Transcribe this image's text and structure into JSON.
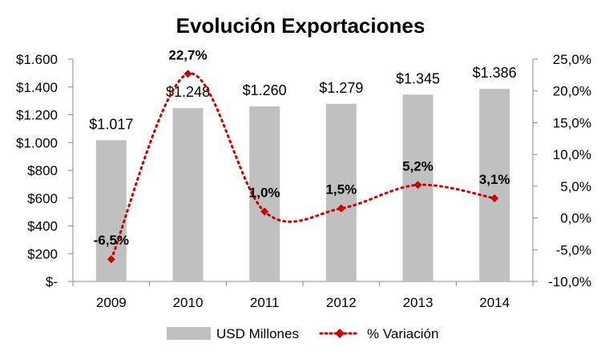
{
  "chart_data": {
    "type": "bar",
    "title": "Evolución Exportaciones",
    "categories": [
      "2009",
      "2010",
      "2011",
      "2012",
      "2013",
      "2014"
    ],
    "series": [
      {
        "name": "USD Millones",
        "type": "bar",
        "axis": "left",
        "color": "#c0c0c0",
        "values": [
          1017,
          1248,
          1260,
          1279,
          1345,
          1386
        ],
        "labels": [
          "$1.017",
          "$1.248",
          "$1.260",
          "$1.279",
          "$1.345",
          "$1.386"
        ]
      },
      {
        "name": "% Variación",
        "type": "line",
        "axis": "right",
        "color": "#cc0000",
        "style": "dotted-smooth",
        "marker": "diamond",
        "values": [
          -6.5,
          22.7,
          1.0,
          1.5,
          5.2,
          3.1
        ],
        "labels": [
          "-6,5%",
          "22,7%",
          "1,0%",
          "1,5%",
          "5,2%",
          "3,1%"
        ]
      }
    ],
    "y_left": {
      "ylim": [
        0,
        1600
      ],
      "ticks": [
        0,
        200,
        400,
        600,
        800,
        1000,
        1200,
        1400,
        1600
      ],
      "tick_labels": [
        "$-",
        "$200",
        "$400",
        "$600",
        "$800",
        "$1.000",
        "$1.200",
        "$1.400",
        "$1.600"
      ]
    },
    "y_right": {
      "ylim": [
        -10,
        25
      ],
      "ticks": [
        -10,
        -5,
        0,
        5,
        10,
        15,
        20,
        25
      ],
      "tick_labels": [
        "-10,0%",
        "-5,0%",
        "0,0%",
        "5,0%",
        "10,0%",
        "15,0%",
        "20,0%",
        "25,0%"
      ]
    },
    "xlabel": "",
    "ylabel": "",
    "grid": false,
    "legend": "bottom"
  }
}
